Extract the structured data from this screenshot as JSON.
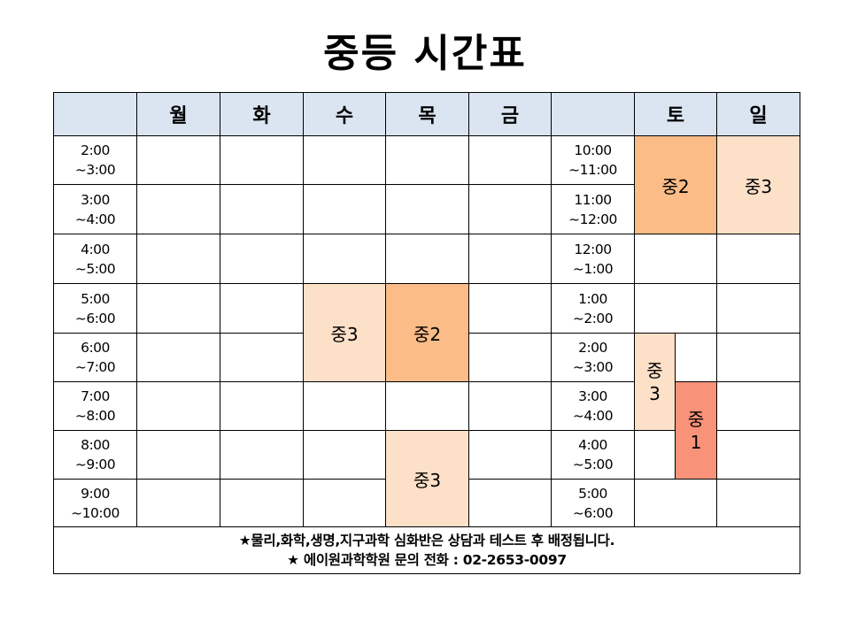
{
  "title": "중등  시간표",
  "header": {
    "corner_left": "",
    "days_weekday": [
      "월",
      "화",
      "수",
      "목",
      "금"
    ],
    "corner_mid": "",
    "days_weekend": [
      "토",
      "일"
    ]
  },
  "rows": [
    {
      "weekday_time": [
        "2:00",
        "~3:00"
      ],
      "weekend_time": [
        "10:00",
        "~11:00"
      ]
    },
    {
      "weekday_time": [
        "3:00",
        "~4:00"
      ],
      "weekend_time": [
        "11:00",
        "~12:00"
      ]
    },
    {
      "weekday_time": [
        "4:00",
        "~5:00"
      ],
      "weekend_time": [
        "12:00",
        "~1:00"
      ]
    },
    {
      "weekday_time": [
        "5:00",
        "~6:00"
      ],
      "weekend_time": [
        "1:00",
        "~2:00"
      ]
    },
    {
      "weekday_time": [
        "6:00",
        "~7:00"
      ],
      "weekend_time": [
        "2:00",
        "~3:00"
      ]
    },
    {
      "weekday_time": [
        "7:00",
        "~8:00"
      ],
      "weekend_time": [
        "3:00",
        "~4:00"
      ]
    },
    {
      "weekday_time": [
        "8:00",
        "~9:00"
      ],
      "weekend_time": [
        "4:00",
        "~5:00"
      ]
    },
    {
      "weekday_time": [
        "9:00",
        "~10:00"
      ],
      "weekend_time": [
        "5:00",
        "~6:00"
      ]
    }
  ],
  "classes": {
    "wed_5_7": "중3",
    "thu_5_7": "중2",
    "thu_8_10": "중3",
    "sat_10_12": "중2",
    "sun_10_12": "중3",
    "sat_2_4": [
      "중",
      "3"
    ],
    "sat_3_5": [
      "중",
      "1"
    ]
  },
  "colors": {
    "header_bg": "#dbe5f1",
    "light_orange": "#fde0c8",
    "mid_orange": "#fbbc87",
    "dark_orange": "#f8937a"
  },
  "footer": {
    "line1": "★물리,화학,생명,지구과학 심화반은 상담과 테스트 후 배정됩니다.",
    "line2": "★ 에이원과학학원 문의 전화 : 02-2653-0097"
  }
}
